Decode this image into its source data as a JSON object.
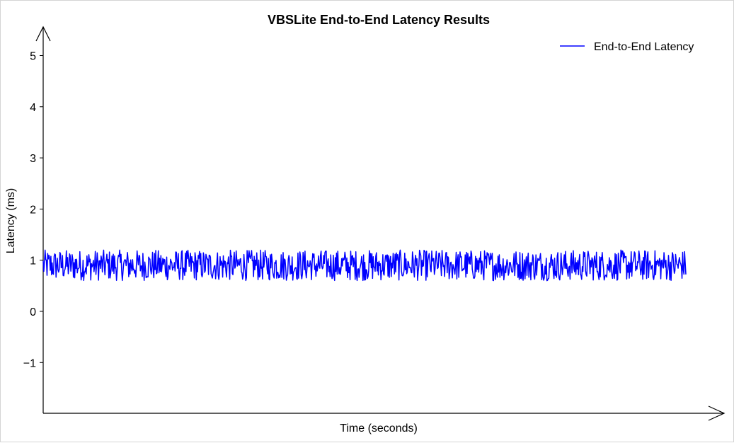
{
  "chart_data": {
    "type": "line",
    "title": "VBSLite End-to-End Latency Results",
    "xlabel": "Time (seconds)",
    "ylabel": "Latency (ms)",
    "ylim": [
      -2,
      5.5
    ],
    "yticks": [
      -1,
      0,
      1,
      2,
      3,
      4,
      5
    ],
    "ytick_labels": [
      "−1",
      "0",
      "1",
      "2",
      "3",
      "4",
      "5"
    ],
    "xticks_shown": false,
    "grid": false,
    "legend_position": "top-right",
    "series": [
      {
        "name": "End-to-End Latency",
        "color": "#0000ff",
        "sample_count": 1000,
        "mean": 0.9,
        "min": 0.6,
        "max": 1.2,
        "distribution": "uniform noise"
      }
    ]
  }
}
